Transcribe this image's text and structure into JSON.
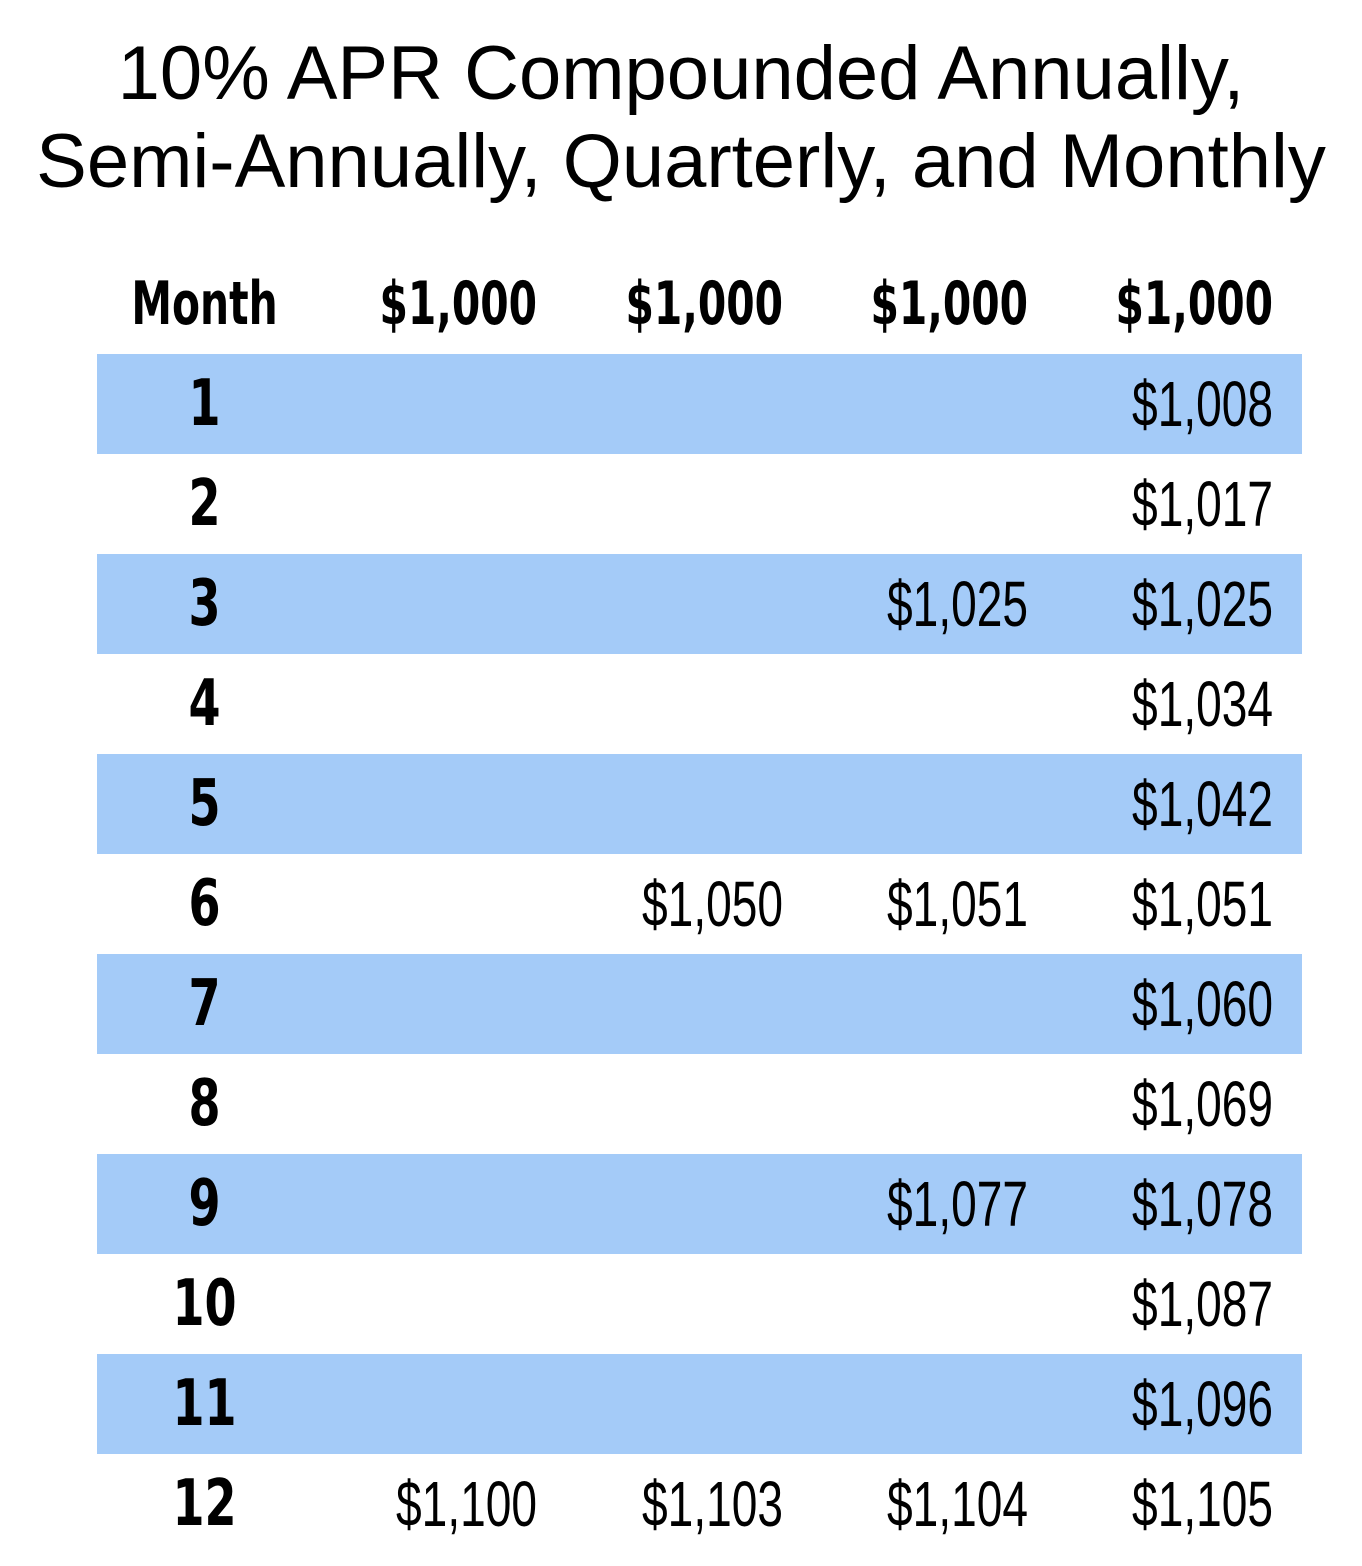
{
  "title": {
    "line1": "10% APR Compounded Annually,",
    "line2": "Semi-Annually, Quarterly, and Monthly"
  },
  "table": {
    "headers": [
      "Month",
      "$1,000",
      "$1,000",
      "$1,000",
      "$1,000"
    ],
    "rows": [
      [
        "1",
        "",
        "",
        "",
        "$1,008"
      ],
      [
        "2",
        "",
        "",
        "",
        "$1,017"
      ],
      [
        "3",
        "",
        "",
        "$1,025",
        "$1,025"
      ],
      [
        "4",
        "",
        "",
        "",
        "$1,034"
      ],
      [
        "5",
        "",
        "",
        "",
        "$1,042"
      ],
      [
        "6",
        "",
        "$1,050",
        "$1,051",
        "$1,051"
      ],
      [
        "7",
        "",
        "",
        "",
        "$1,060"
      ],
      [
        "8",
        "",
        "",
        "",
        "$1,069"
      ],
      [
        "9",
        "",
        "",
        "$1,077",
        "$1,078"
      ],
      [
        "10",
        "",
        "",
        "",
        "$1,087"
      ],
      [
        "11",
        "",
        "",
        "",
        "$1,096"
      ],
      [
        "12",
        "$1,100",
        "$1,103",
        "$1,104",
        "$1,105"
      ]
    ]
  },
  "colors": {
    "band": "#a4cbf8",
    "background": "#ffffff",
    "text": "#000000"
  }
}
